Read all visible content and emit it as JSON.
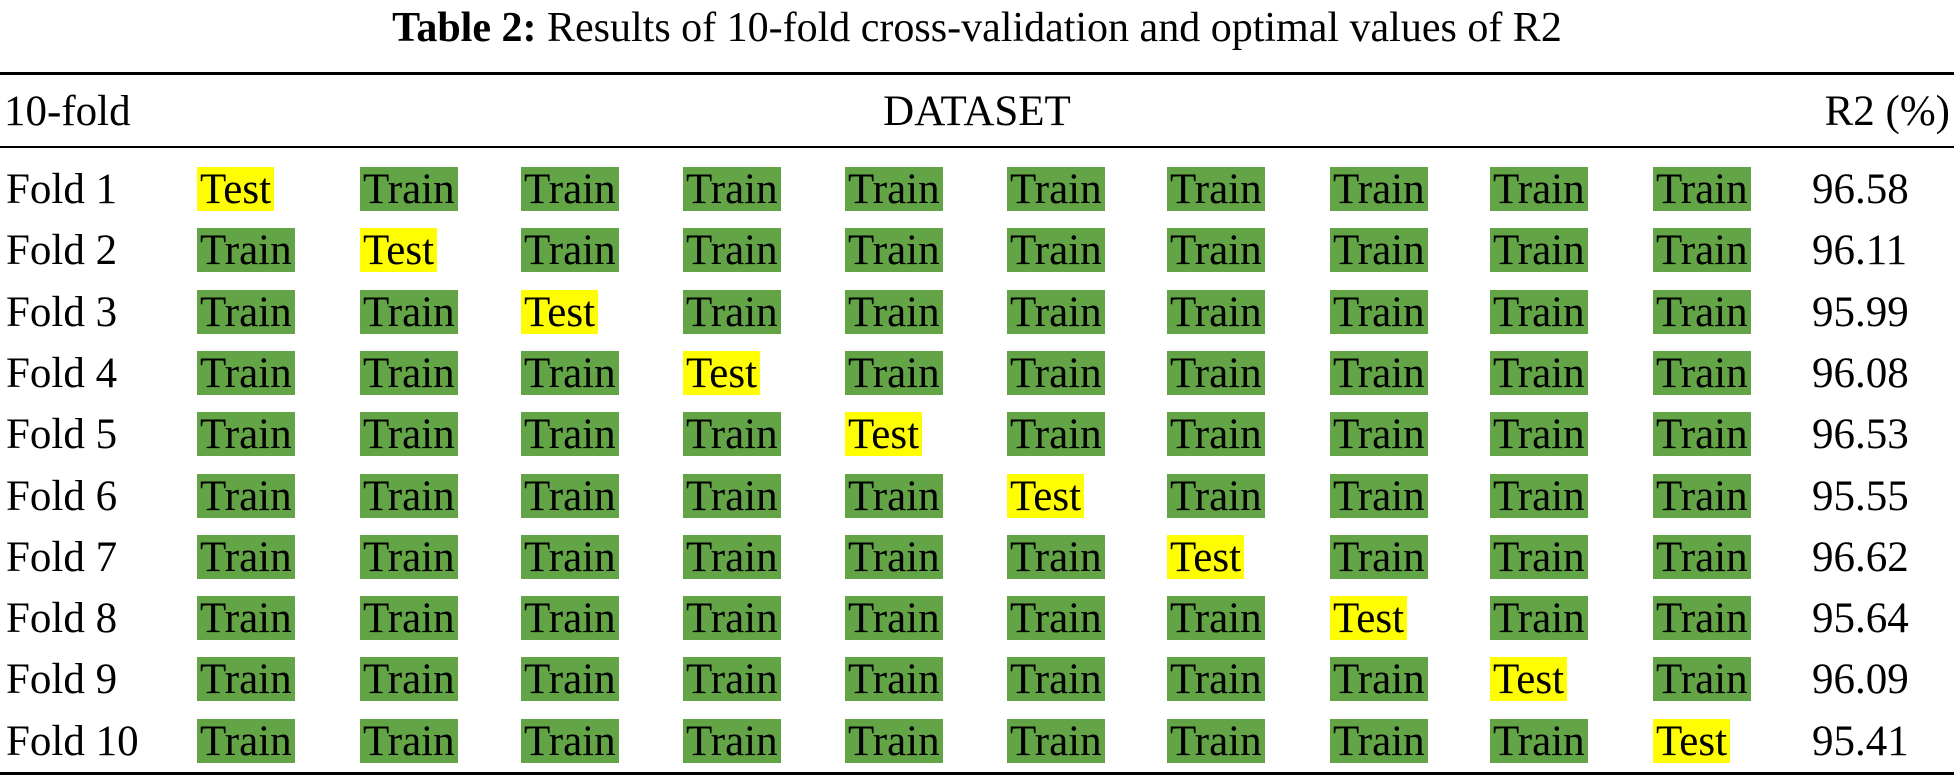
{
  "caption": {
    "label": "Table 2:",
    "text": "Results of 10-fold cross-validation and optimal values of R2"
  },
  "header": {
    "fold": "10-fold",
    "dataset": "DATASET",
    "r2": "R2 (%)"
  },
  "colors": {
    "train": "#62a446",
    "test": "#fffd02"
  },
  "rows": [
    {
      "fold": "Fold 1",
      "test_index": 0,
      "r2": "96.58"
    },
    {
      "fold": "Fold 2",
      "test_index": 1,
      "r2": "96.11"
    },
    {
      "fold": "Fold 3",
      "test_index": 2,
      "r2": "95.99"
    },
    {
      "fold": "Fold 4",
      "test_index": 3,
      "r2": "96.08"
    },
    {
      "fold": "Fold 5",
      "test_index": 4,
      "r2": "96.53"
    },
    {
      "fold": "Fold 6",
      "test_index": 5,
      "r2": "95.55"
    },
    {
      "fold": "Fold 7",
      "test_index": 6,
      "r2": "96.62"
    },
    {
      "fold": "Fold 8",
      "test_index": 7,
      "r2": "95.64"
    },
    {
      "fold": "Fold 9",
      "test_index": 8,
      "r2": "96.09"
    },
    {
      "fold": "Fold 10",
      "test_index": 9,
      "r2": "95.41"
    }
  ],
  "cell_labels": {
    "train": "Train",
    "test": "Test"
  }
}
